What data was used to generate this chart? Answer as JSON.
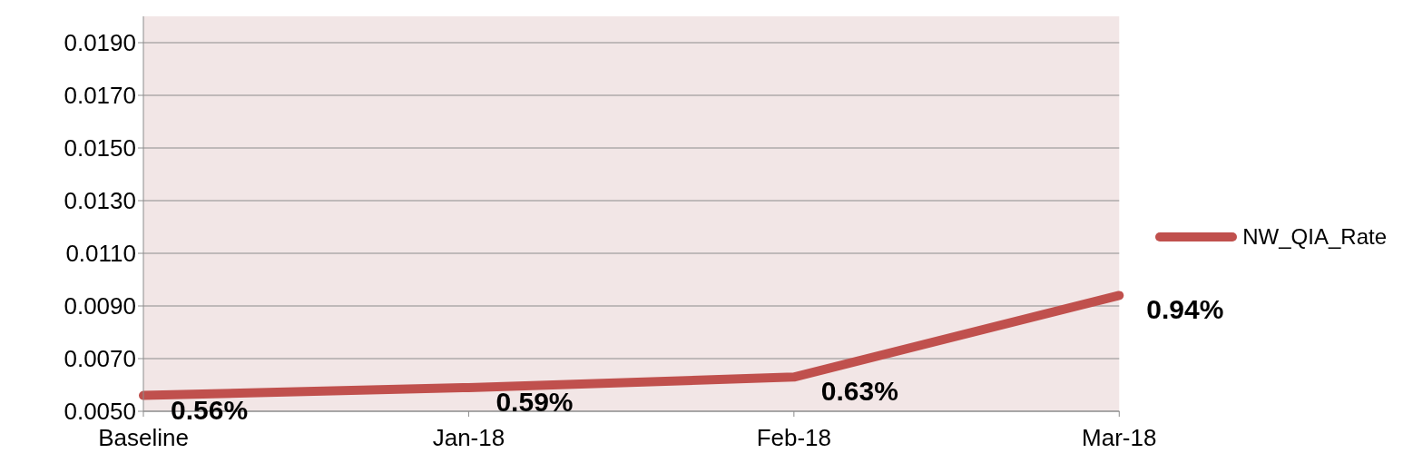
{
  "chart_data": {
    "type": "line",
    "categories": [
      "Baseline",
      "Jan-18",
      "Feb-18",
      "Mar-18"
    ],
    "series": [
      {
        "name": "NW_QIA_Rate",
        "color": "#c0504d",
        "values": [
          0.0056,
          0.0059,
          0.0063,
          0.0094
        ],
        "value_labels": [
          "0.56%",
          "0.59%",
          "0.63%",
          "0.94%"
        ]
      }
    ],
    "ylim": [
      0.005,
      0.02
    ],
    "yticks": [
      {
        "value": 0.005,
        "label": "0.0050"
      },
      {
        "value": 0.007,
        "label": "0.0070"
      },
      {
        "value": 0.009,
        "label": "0.0090"
      },
      {
        "value": 0.011,
        "label": "0.0110"
      },
      {
        "value": 0.013,
        "label": "0.0130"
      },
      {
        "value": 0.015,
        "label": "0.0150"
      },
      {
        "value": 0.017,
        "label": "0.0170"
      },
      {
        "value": 0.019,
        "label": "0.0190"
      }
    ],
    "grid": "y",
    "legend": "right",
    "marker": "none",
    "line_style": "solid"
  }
}
